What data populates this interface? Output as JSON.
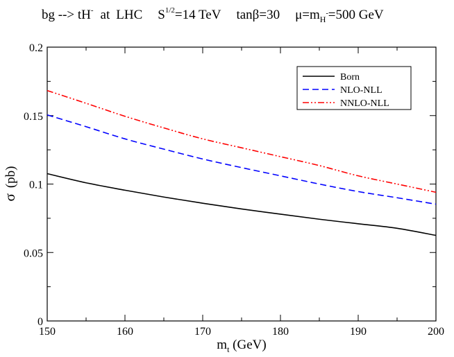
{
  "chart_data": {
    "type": "line",
    "title": {
      "process": "bg --> tH",
      "process_sup": "-",
      "at": "at",
      "collider": "LHC",
      "energy_sym": "S",
      "energy_sup": "1/2",
      "energy_val": "=14 TeV",
      "tanb": "tanβ=30",
      "mu_a": "μ=m",
      "mu_sub": "H",
      "mu_sub_sup": "-",
      "mu_b": "=500 GeV"
    },
    "xlabel": {
      "main": "m",
      "sub": "t",
      "rest": " (GeV)"
    },
    "ylabel": {
      "sym": "σ",
      "rest": "(pb)"
    },
    "xlim": [
      150,
      200
    ],
    "ylim": [
      0,
      0.2
    ],
    "xticks": [
      150,
      160,
      170,
      180,
      190,
      200
    ],
    "xtick_labels": [
      "150",
      "160",
      "170",
      "180",
      "190",
      "200"
    ],
    "yticks": [
      0,
      0.05,
      0.1,
      0.15,
      0.2
    ],
    "ytick_labels": [
      "0",
      "0.05",
      "0.1",
      "0.15",
      "0.2"
    ],
    "x": [
      150,
      155,
      160,
      165,
      170,
      175,
      180,
      185,
      190,
      195,
      200
    ],
    "series": [
      {
        "name": "Born",
        "color": "#000000",
        "dash": "solid",
        "values": [
          0.1076,
          0.1009,
          0.0955,
          0.0905,
          0.086,
          0.0818,
          0.078,
          0.0743,
          0.071,
          0.0677,
          0.0625
        ]
      },
      {
        "name": "NLO-NLL",
        "color": "#0000ff",
        "dash": "dashed",
        "values": [
          0.1505,
          0.1419,
          0.133,
          0.1255,
          0.1183,
          0.112,
          0.106,
          0.1,
          0.0945,
          0.09,
          0.0853
        ]
      },
      {
        "name": "NNLO-NLL",
        "color": "#ff0000",
        "dash": "dashdot",
        "values": [
          0.1683,
          0.159,
          0.1495,
          0.141,
          0.133,
          0.1265,
          0.12,
          0.1135,
          0.106,
          0.1,
          0.094
        ]
      }
    ],
    "legend": {
      "position": "top-right",
      "entries": [
        "Born",
        "NLO-NLL",
        "NNLO-NLL"
      ]
    },
    "grid": false
  }
}
